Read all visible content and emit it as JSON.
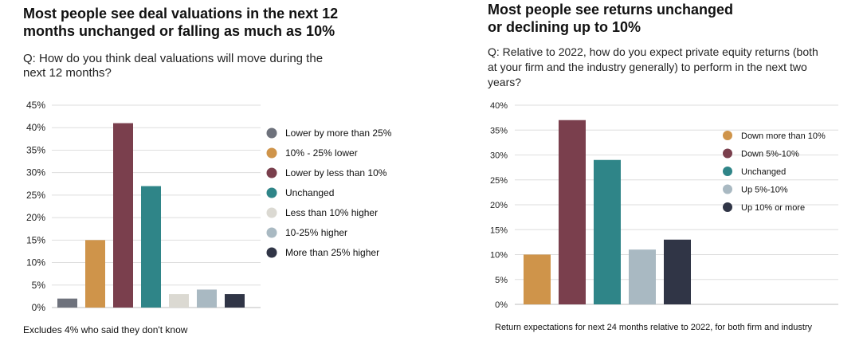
{
  "chart_data": [
    {
      "type": "bar",
      "title": "Most people see deal valuations in the next 12 months unchanged or falling as much as 10%",
      "question": "Q: How do you think deal valuations will move during the next 12 months?",
      "footnote": "Excludes 4% who said they don't know",
      "yticks": [
        "0%",
        "5%",
        "10%",
        "15%",
        "20%",
        "25%",
        "30%",
        "35%",
        "40%",
        "45%"
      ],
      "ylim": [
        0,
        45
      ],
      "grid": true,
      "legend_position": "right",
      "categories": [
        "Lower by more than 25%",
        "10% - 25% lower",
        "Lower by less than 10%",
        "Unchanged",
        "Less than 10% higher",
        "10-25% higher",
        "More than 25% higher"
      ],
      "values": [
        2,
        15,
        41,
        27,
        3,
        4,
        3
      ],
      "colors": [
        "#6e727c",
        "#cf944a",
        "#7a3f4d",
        "#2f8588",
        "#dbd9d2",
        "#a9b9c2",
        "#303546"
      ]
    },
    {
      "type": "bar",
      "title": "Most people see returns unchanged or declining up to 10%",
      "question": "Q: Relative to 2022, how do you expect private equity returns (both at your firm and the industry generally) to perform in the next two years?",
      "footnote": "Return expectations for next 24 months relative to 2022, for both firm and industry",
      "yticks": [
        "0%",
        "5%",
        "10%",
        "15%",
        "20%",
        "25%",
        "30%",
        "35%",
        "40%"
      ],
      "ylim": [
        0,
        40
      ],
      "grid": true,
      "legend_position": "right",
      "categories": [
        "Down more than 10%",
        "Down 5%-10%",
        "Unchanged",
        "Up 5%-10%",
        "Up 10% or more"
      ],
      "values": [
        10,
        37,
        29,
        11,
        13
      ],
      "colors": [
        "#cf944a",
        "#7a3f4d",
        "#2f8588",
        "#a9b9c2",
        "#303546"
      ]
    }
  ]
}
